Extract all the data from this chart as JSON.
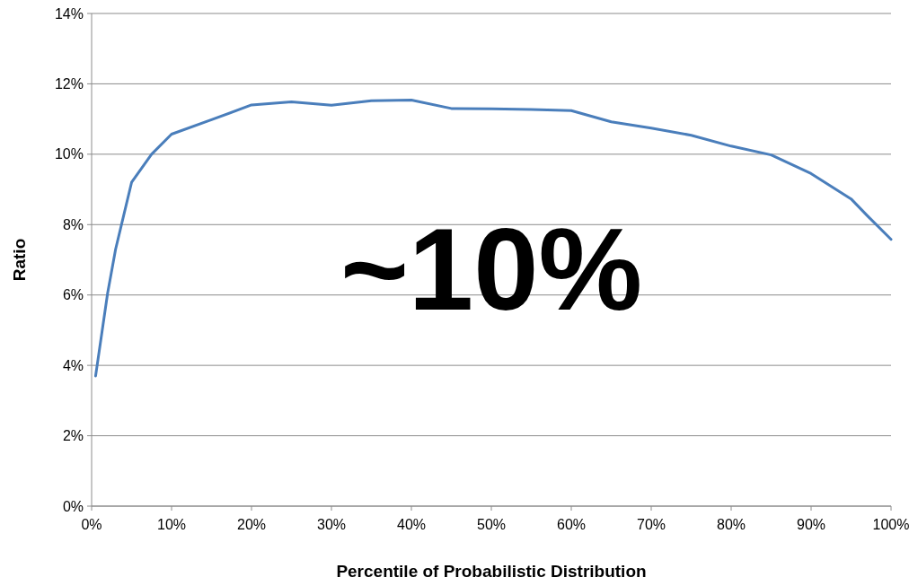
{
  "chart_data": {
    "type": "line",
    "xlabel": "Percentile of Probabilistic Distribution",
    "ylabel": "Ratio",
    "annotations": [
      "~10%"
    ],
    "x": [
      0.5,
      2,
      3,
      5,
      7.5,
      10,
      15,
      20,
      25,
      30,
      35,
      40,
      45,
      50,
      55,
      60,
      65,
      70,
      75,
      80,
      85,
      90,
      95,
      97,
      100
    ],
    "series": [
      {
        "color": "#4a7ebb",
        "values": [
          3.7,
          6.05,
          7.3,
          9.2,
          10.0,
          10.57,
          10.98,
          11.4,
          11.49,
          11.39,
          11.52,
          11.54,
          11.3,
          11.29,
          11.27,
          11.24,
          10.92,
          10.74,
          10.54,
          10.23,
          9.98,
          9.45,
          8.73,
          8.26,
          7.58
        ]
      }
    ],
    "xlim": [
      0,
      100
    ],
    "xticks": [
      {
        "value": 0,
        "label": "0%"
      },
      {
        "value": 10,
        "label": "10%"
      },
      {
        "value": 20,
        "label": "20%"
      },
      {
        "value": 30,
        "label": "30%"
      },
      {
        "value": 40,
        "label": "40%"
      },
      {
        "value": 50,
        "label": "50%"
      },
      {
        "value": 60,
        "label": "60%"
      },
      {
        "value": 70,
        "label": "70%"
      },
      {
        "value": 80,
        "label": "80%"
      },
      {
        "value": 90,
        "label": "90%"
      },
      {
        "value": 100,
        "label": "100%"
      }
    ],
    "ylim": [
      0,
      14
    ],
    "yticks": [
      {
        "value": 0,
        "label": "0%"
      },
      {
        "value": 2,
        "label": "2%"
      },
      {
        "value": 4,
        "label": "4%"
      },
      {
        "value": 6,
        "label": "6%"
      },
      {
        "value": 8,
        "label": "8%"
      },
      {
        "value": 10,
        "label": "10%"
      },
      {
        "value": 12,
        "label": "12%"
      },
      {
        "value": 14,
        "label": "14%"
      }
    ],
    "grid": "y",
    "marker": "none",
    "line_style": "solid"
  }
}
